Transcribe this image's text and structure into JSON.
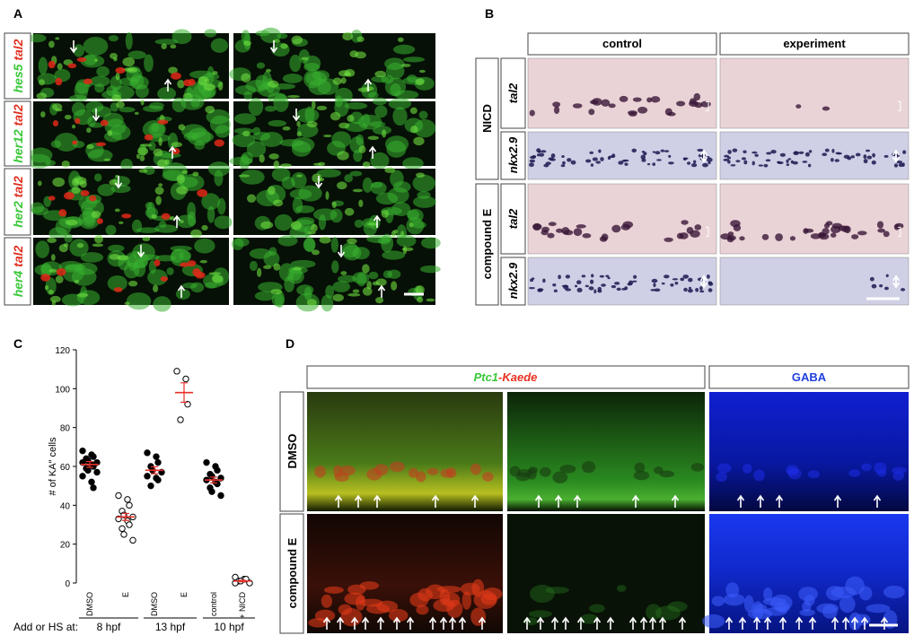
{
  "panel_a": {
    "label": "A",
    "rows": [
      {
        "gene": "hes5",
        "marker": "tal2"
      },
      {
        "gene": "her12",
        "marker": "tal2"
      },
      {
        "gene": "her2",
        "marker": "tal2"
      },
      {
        "gene": "her4",
        "marker": "tal2"
      }
    ]
  },
  "panel_b": {
    "label": "B",
    "columns": [
      "control",
      "experiment"
    ],
    "conditions": [
      "NICD",
      "compound E"
    ],
    "genes": [
      "tal2",
      "nkx2.9"
    ]
  },
  "chart_data": {
    "type": "scatter",
    "label": "C",
    "ylabel": "# of KA″ cells",
    "ylim": [
      0,
      120
    ],
    "yticks": [
      0,
      20,
      40,
      60,
      80,
      100,
      120
    ],
    "group_label": "Add or HS at:",
    "mean_color": "#e8302a",
    "groups": [
      {
        "label": "8 hpf",
        "categories": [
          "DMSO",
          "E"
        ],
        "hollow": [
          false,
          true
        ],
        "means": [
          61,
          34
        ],
        "sem": [
          1.5,
          1.8
        ],
        "points": [
          [
            68,
            66,
            65,
            64,
            63,
            62,
            62,
            61,
            60,
            59,
            58,
            57,
            55,
            52,
            49
          ],
          [
            45,
            43,
            40,
            37,
            35,
            34,
            33,
            32,
            30,
            28,
            25,
            22
          ]
        ]
      },
      {
        "label": "13 hpf",
        "categories": [
          "DMSO",
          "E"
        ],
        "hollow": [
          false,
          true
        ],
        "means": [
          58,
          98
        ],
        "sem": [
          1.8,
          5
        ],
        "points": [
          [
            67,
            65,
            62,
            60,
            58,
            57,
            55,
            54,
            53,
            50
          ],
          [
            109,
            105,
            92,
            84
          ]
        ]
      },
      {
        "label": "10 hpf",
        "categories": [
          "control",
          "+ NICD"
        ],
        "hollow": [
          false,
          true
        ],
        "means": [
          53,
          1
        ],
        "sem": [
          1.5,
          0.4
        ],
        "points": [
          [
            62,
            60,
            58,
            56,
            55,
            54,
            53,
            52,
            51,
            49,
            47,
            45
          ],
          [
            3,
            2,
            2,
            1,
            1,
            0,
            0
          ]
        ]
      }
    ]
  },
  "panel_d": {
    "label": "D",
    "header_green": "Ptc1",
    "header_red": "-Kaede",
    "header_blue": "GABA",
    "conditions": [
      "DMSO",
      "compound E"
    ]
  }
}
